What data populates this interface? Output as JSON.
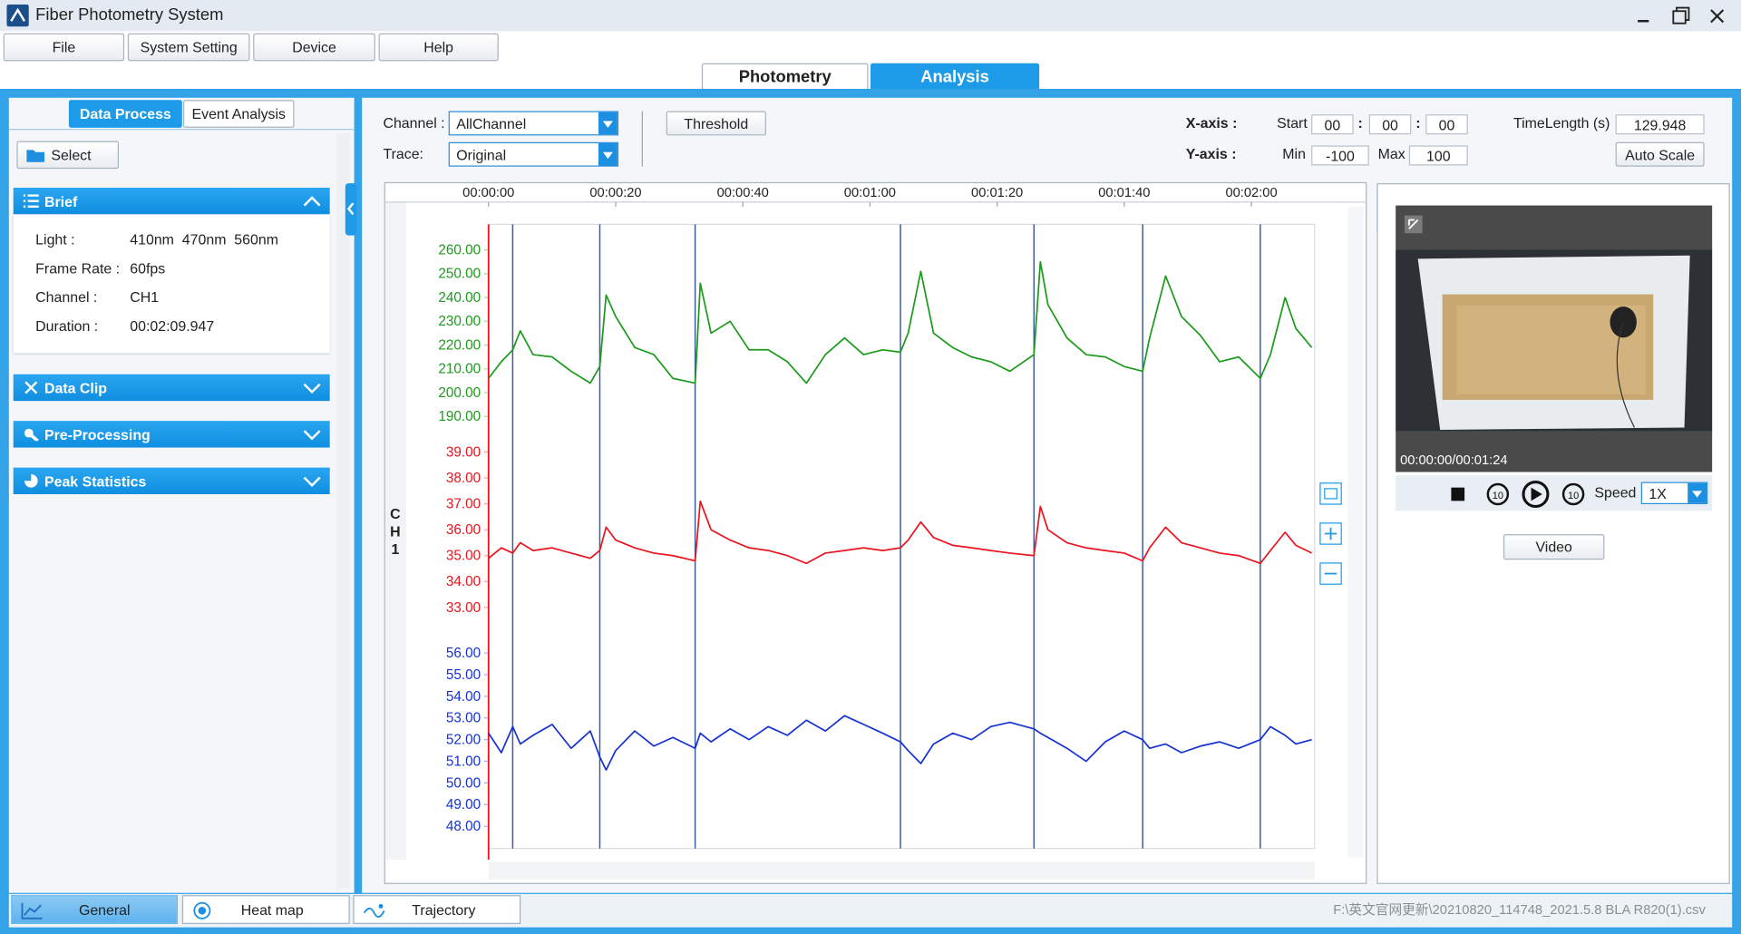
{
  "window": {
    "title": "Fiber Photometry System"
  },
  "menu": [
    "File",
    "System Setting",
    "Device",
    "Help"
  ],
  "mode_tabs": [
    "Photometry",
    "Analysis"
  ],
  "left_panel": {
    "tabs": [
      "Data Process",
      "Event Analysis"
    ],
    "select_button": "Select",
    "brief": {
      "title": "Brief",
      "rows": [
        {
          "label": "Light :",
          "value": "410nm  470nm  560nm"
        },
        {
          "label": "Frame Rate :",
          "value": "60fps"
        },
        {
          "label": "Channel :",
          "value": "CH1"
        },
        {
          "label": "Duration :",
          "value": "00:02:09.947"
        }
      ]
    },
    "sections": [
      "Data Clip",
      "Pre-Processing",
      "Peak Statistics"
    ]
  },
  "toolbar": {
    "channel_label": "Channel :",
    "channel_value": "AllChannel",
    "trace_label": "Trace:",
    "trace_value": "Original",
    "threshold_button": "Threshold",
    "x_axis_label": "X-axis :",
    "start_label": "Start",
    "start_fields": [
      "00",
      "00",
      "00"
    ],
    "separator": ":",
    "time_length_label": "TimeLength (s)",
    "time_length_value": "129.948",
    "y_axis_label": "Y-axis :",
    "min_label": "Min",
    "min_value": "-100",
    "max_label": "Max",
    "max_value": "100",
    "auto_scale_button": "Auto Scale"
  },
  "chart_data": {
    "type": "line",
    "channel_label": "CH1",
    "x": [
      0,
      2,
      3.8,
      5,
      7,
      10,
      13,
      16,
      17.5,
      18.5,
      20,
      23,
      26,
      29,
      32.5,
      33.3,
      35,
      38,
      41,
      44,
      47,
      50,
      53,
      56,
      59,
      62,
      64.8,
      66,
      68,
      70,
      73,
      76,
      79,
      82,
      85.8,
      86.8,
      88,
      91,
      94,
      97,
      100,
      102.9,
      104,
      106.5,
      109,
      112,
      115,
      118,
      121.4,
      123,
      125.3,
      127,
      129.5
    ],
    "xlim": [
      0,
      129.948
    ],
    "xticks": [
      {
        "value": 0,
        "label": "00:00:00"
      },
      {
        "value": 20,
        "label": "00:00:20"
      },
      {
        "value": 40,
        "label": "00:00:40"
      },
      {
        "value": 60,
        "label": "00:01:00"
      },
      {
        "value": 80,
        "label": "00:01:20"
      },
      {
        "value": 100,
        "label": "00:01:40"
      },
      {
        "value": 120,
        "label": "00:02:00"
      }
    ],
    "series": [
      {
        "color": "#1c9a1c",
        "ylim": [
          190,
          260
        ],
        "yticks": [
          {
            "value": 260,
            "label": "260.00"
          },
          {
            "value": 250,
            "label": "250.00"
          },
          {
            "value": 240,
            "label": "240.00"
          },
          {
            "value": 230,
            "label": "230.00"
          },
          {
            "value": 220,
            "label": "220.00"
          },
          {
            "value": 210,
            "label": "210.00"
          },
          {
            "value": 200,
            "label": "200.00"
          },
          {
            "value": 190,
            "label": "190.00"
          }
        ],
        "values": [
          206,
          213,
          218,
          226,
          216,
          215,
          209,
          204,
          211,
          241,
          232,
          219,
          216,
          206,
          204,
          246,
          225,
          230,
          218,
          218,
          213,
          204,
          216,
          223,
          216,
          218,
          217,
          225,
          251,
          225,
          219,
          215,
          213,
          209,
          216,
          255,
          237,
          223,
          216,
          215,
          211,
          209,
          223,
          249,
          232,
          224,
          213,
          215,
          206,
          216,
          240,
          227,
          219
        ]
      },
      {
        "color": "#e8141e",
        "ylim": [
          33,
          39
        ],
        "yticks": [
          {
            "value": 39,
            "label": "39.00"
          },
          {
            "value": 38,
            "label": "38.00"
          },
          {
            "value": 37,
            "label": "37.00"
          },
          {
            "value": 36,
            "label": "36.00"
          },
          {
            "value": 35,
            "label": "35.00"
          },
          {
            "value": 34,
            "label": "34.00"
          },
          {
            "value": 33,
            "label": "33.00"
          }
        ],
        "values": [
          34.9,
          35.3,
          35.1,
          35.5,
          35.2,
          35.3,
          35.1,
          34.9,
          35.2,
          36.1,
          35.6,
          35.3,
          35.1,
          35.0,
          34.8,
          37.1,
          36.0,
          35.6,
          35.3,
          35.2,
          35.0,
          34.7,
          35.1,
          35.2,
          35.3,
          35.2,
          35.3,
          35.6,
          36.3,
          35.7,
          35.4,
          35.3,
          35.2,
          35.1,
          35.0,
          36.9,
          36.0,
          35.5,
          35.3,
          35.2,
          35.1,
          34.8,
          35.3,
          36.1,
          35.5,
          35.3,
          35.1,
          35.0,
          34.7,
          35.2,
          35.9,
          35.4,
          35.1
        ]
      },
      {
        "color": "#1432d2",
        "ylim": [
          48,
          56
        ],
        "yticks": [
          {
            "value": 56,
            "label": "56.00"
          },
          {
            "value": 55,
            "label": "55.00"
          },
          {
            "value": 54,
            "label": "54.00"
          },
          {
            "value": 53,
            "label": "53.00"
          },
          {
            "value": 52,
            "label": "52.00"
          },
          {
            "value": 51,
            "label": "51.00"
          },
          {
            "value": 50,
            "label": "50.00"
          },
          {
            "value": 49,
            "label": "49.00"
          },
          {
            "value": 48,
            "label": "48.00"
          }
        ],
        "values": [
          52.3,
          51.4,
          52.6,
          51.8,
          52.2,
          52.7,
          51.6,
          52.4,
          51.2,
          50.6,
          51.5,
          52.4,
          51.7,
          52.1,
          51.6,
          52.3,
          51.9,
          52.5,
          52.0,
          52.6,
          52.2,
          52.9,
          52.4,
          53.1,
          52.7,
          52.3,
          51.9,
          51.5,
          50.9,
          51.8,
          52.3,
          52.0,
          52.6,
          52.8,
          52.5,
          52.3,
          52.1,
          51.6,
          51.0,
          51.9,
          52.4,
          52.0,
          51.6,
          51.8,
          51.4,
          51.7,
          51.9,
          51.6,
          52.0,
          52.6,
          52.2,
          51.8,
          52.0
        ]
      }
    ],
    "events": [
      3.8,
      17.5,
      32.5,
      64.8,
      85.8,
      102.9,
      121.4
    ],
    "cursor": 0
  },
  "video": {
    "timestamp": "00:00:00/00:01:24",
    "speed_label": "Speed",
    "speed_value": "1X",
    "video_button": "Video"
  },
  "bottom_tabs": [
    "General",
    "Heat map",
    "Trajectory"
  ],
  "status_path": "F:\\英文官网更新\\20210820_114748_2021.5.8 BLA R820(1).csv"
}
